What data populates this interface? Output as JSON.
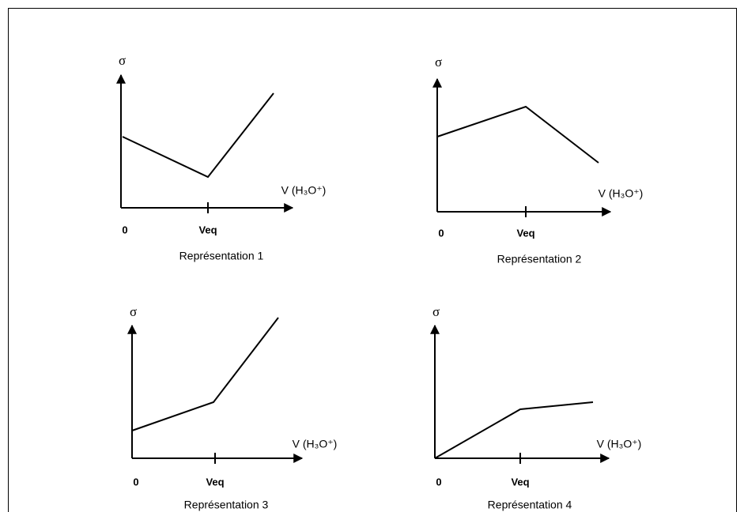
{
  "graphs": [
    {
      "y_label": "σ",
      "x_label": "V (H₃O⁺)",
      "origin": "0",
      "tick_label": "Veq",
      "caption": "Représentation 1"
    },
    {
      "y_label": "σ",
      "x_label": "V (H₃O⁺)",
      "origin": "0",
      "tick_label": "Veq",
      "caption": "Représentation 2"
    },
    {
      "y_label": "σ",
      "x_label": "V (H₃O⁺)",
      "origin": "0",
      "tick_label": "Veq",
      "caption": "Représentation 3"
    },
    {
      "y_label": "σ",
      "x_label": "V (H₃O⁺)",
      "origin": "0",
      "tick_label": "Veq",
      "caption": "Représentation 4"
    }
  ]
}
